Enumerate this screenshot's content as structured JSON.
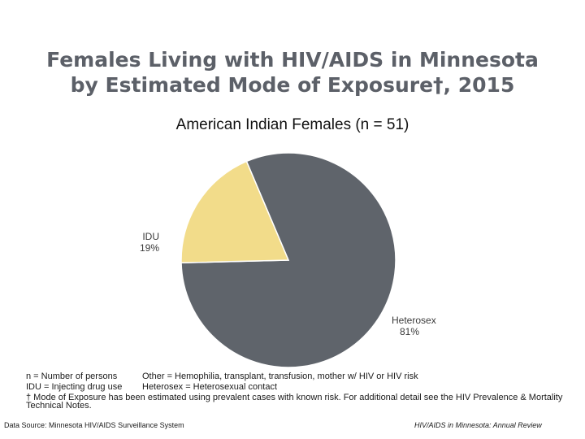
{
  "title_line1": "Females Living with HIV/AIDS in Minnesota",
  "title_line2": "by Estimated Mode of Exposure†, 2015",
  "chart_data": {
    "type": "pie",
    "title": "American Indian Females (n = 51)",
    "slices": [
      {
        "name": "Heterosex",
        "value": 81,
        "label": "81%",
        "color": "#5f646b"
      },
      {
        "name": "IDU",
        "value": 19,
        "label": "19%",
        "color": "#f2dc8a"
      }
    ]
  },
  "footnotes": {
    "n_def": "n = Number of persons",
    "other_def": "Other = Hemophilia, transplant, transfusion, mother w/ HIV or HIV risk",
    "idu_def": "IDU = Injecting drug use",
    "heterosex_def": "Heterosex = Heterosexual contact",
    "dagger_note": "† Mode of Exposure has been estimated using prevalent cases with known risk. For additional detail see the HIV Prevalence & Mortality Technical Notes."
  },
  "source_left": "Data Source: Minnesota HIV/AIDS Surveillance System",
  "source_right": "HIV/AIDS in Minnesota: Annual Review"
}
